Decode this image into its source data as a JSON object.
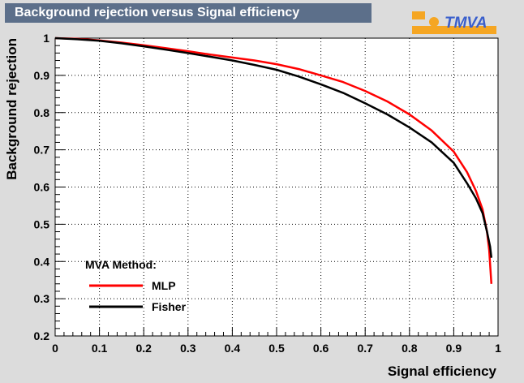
{
  "chart_data": {
    "type": "line",
    "title": "Background rejection versus Signal efficiency",
    "xlabel": "Signal efficiency",
    "ylabel": "Background rejection",
    "xlim": [
      0,
      1
    ],
    "ylim": [
      0.2,
      1
    ],
    "x_ticks": [
      "0",
      "0.1",
      "0.2",
      "0.3",
      "0.4",
      "0.5",
      "0.6",
      "0.7",
      "0.8",
      "0.9",
      "1"
    ],
    "y_ticks": [
      "0.2",
      "0.3",
      "0.4",
      "0.5",
      "0.6",
      "0.7",
      "0.8",
      "0.9",
      "1"
    ],
    "grid": true,
    "legend_title": "MVA Method:",
    "legend_position": "bottom-left",
    "series": [
      {
        "name": "MLP",
        "color": "#ff0000",
        "points": [
          [
            0,
            1
          ],
          [
            0.05,
            0.998
          ],
          [
            0.1,
            0.994
          ],
          [
            0.15,
            0.988
          ],
          [
            0.2,
            0.981
          ],
          [
            0.25,
            0.973
          ],
          [
            0.3,
            0.965
          ],
          [
            0.35,
            0.956
          ],
          [
            0.4,
            0.948
          ],
          [
            0.45,
            0.94
          ],
          [
            0.5,
            0.93
          ],
          [
            0.55,
            0.917
          ],
          [
            0.6,
            0.9
          ],
          [
            0.65,
            0.882
          ],
          [
            0.7,
            0.858
          ],
          [
            0.75,
            0.83
          ],
          [
            0.8,
            0.795
          ],
          [
            0.85,
            0.752
          ],
          [
            0.9,
            0.695
          ],
          [
            0.93,
            0.64
          ],
          [
            0.95,
            0.59
          ],
          [
            0.965,
            0.54
          ],
          [
            0.975,
            0.48
          ],
          [
            0.98,
            0.43
          ],
          [
            0.985,
            0.34
          ]
        ]
      },
      {
        "name": "Fisher",
        "color": "#000000",
        "points": [
          [
            0,
            1
          ],
          [
            0.05,
            0.997
          ],
          [
            0.1,
            0.993
          ],
          [
            0.15,
            0.986
          ],
          [
            0.2,
            0.978
          ],
          [
            0.25,
            0.969
          ],
          [
            0.3,
            0.96
          ],
          [
            0.35,
            0.95
          ],
          [
            0.4,
            0.94
          ],
          [
            0.45,
            0.928
          ],
          [
            0.5,
            0.915
          ],
          [
            0.55,
            0.897
          ],
          [
            0.6,
            0.876
          ],
          [
            0.65,
            0.853
          ],
          [
            0.7,
            0.825
          ],
          [
            0.75,
            0.795
          ],
          [
            0.8,
            0.76
          ],
          [
            0.85,
            0.72
          ],
          [
            0.9,
            0.665
          ],
          [
            0.93,
            0.61
          ],
          [
            0.95,
            0.57
          ],
          [
            0.965,
            0.53
          ],
          [
            0.975,
            0.48
          ],
          [
            0.982,
            0.44
          ],
          [
            0.985,
            0.41
          ]
        ]
      }
    ]
  },
  "logo": {
    "text": "TMVA",
    "text_color": "#3a5fcc",
    "accent_color": "#f5a623",
    "t_color": "#e0282e"
  }
}
